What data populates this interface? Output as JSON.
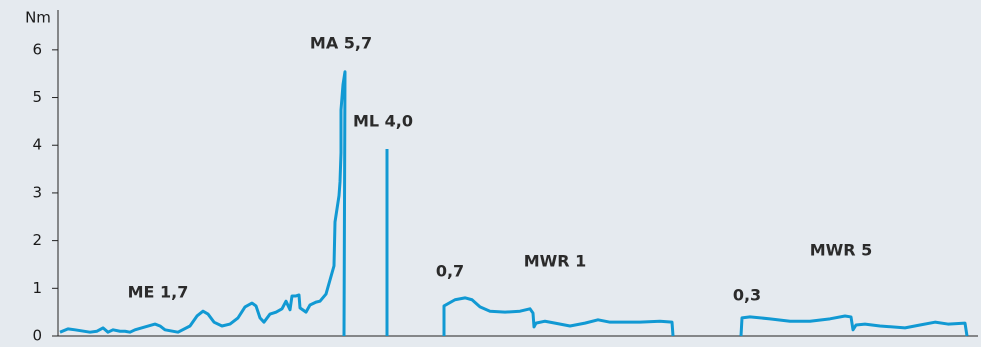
{
  "chart_data": {
    "type": "line",
    "y_label": "Nm",
    "ylim": [
      0,
      6.5
    ],
    "yticks": [
      0,
      1,
      2,
      3,
      4,
      5,
      6
    ],
    "xlim": [
      0,
      920
    ],
    "color": "#1199d3",
    "x": [
      2,
      10,
      17,
      32,
      39,
      45,
      50,
      55,
      62,
      67,
      72,
      77,
      87,
      97,
      102,
      107,
      120,
      132,
      139,
      145,
      150,
      156,
      164,
      172,
      180,
      187,
      194,
      198,
      202,
      206,
      212,
      218,
      224,
      228,
      232,
      234,
      238,
      241,
      242,
      248,
      252,
      258,
      262,
      268,
      276,
      277,
      281,
      282,
      283,
      283,
      285,
      287,
      286,
      null,
      329,
      329,
      null,
      386,
      386,
      397,
      407,
      414,
      422,
      432,
      447,
      462,
      472,
      475,
      476,
      478,
      487,
      497,
      512,
      527,
      540,
      552,
      582,
      602,
      614,
      615,
      null,
      683,
      684,
      692,
      712,
      732,
      752,
      772,
      787,
      793,
      795,
      798,
      807,
      822,
      847,
      862,
      877,
      890,
      907,
      909
    ],
    "values": [
      0.08,
      0.15,
      0.13,
      0.08,
      0.1,
      0.17,
      0.08,
      0.13,
      0.1,
      0.1,
      0.08,
      0.13,
      0.19,
      0.25,
      0.21,
      0.13,
      0.08,
      0.21,
      0.42,
      0.52,
      0.46,
      0.29,
      0.21,
      0.25,
      0.38,
      0.61,
      0.69,
      0.63,
      0.38,
      0.29,
      0.46,
      0.5,
      0.57,
      0.73,
      0.55,
      0.84,
      0.84,
      0.86,
      0.59,
      0.5,
      0.65,
      0.71,
      0.73,
      0.88,
      1.47,
      2.39,
      2.94,
      3.23,
      3.84,
      4.74,
      5.27,
      5.54,
      0,
      null,
      0,
      3.92,
      null,
      0,
      0.63,
      0.76,
      0.8,
      0.76,
      0.61,
      0.52,
      0.5,
      0.52,
      0.57,
      0.48,
      0.19,
      0.27,
      0.31,
      0.27,
      0.21,
      0.27,
      0.34,
      0.29,
      0.29,
      0.31,
      0.29,
      0,
      null,
      0,
      0.38,
      0.4,
      0.36,
      0.31,
      0.31,
      0.36,
      0.42,
      0.4,
      0.13,
      0.23,
      0.25,
      0.21,
      0.17,
      0.23,
      0.29,
      0.25,
      0.27,
      0
    ],
    "annotations": [
      "MA 5,7",
      "ML 4,0",
      "ME 1,7",
      "0,7",
      "MWR 1",
      "0,3",
      "MWR 5"
    ]
  }
}
